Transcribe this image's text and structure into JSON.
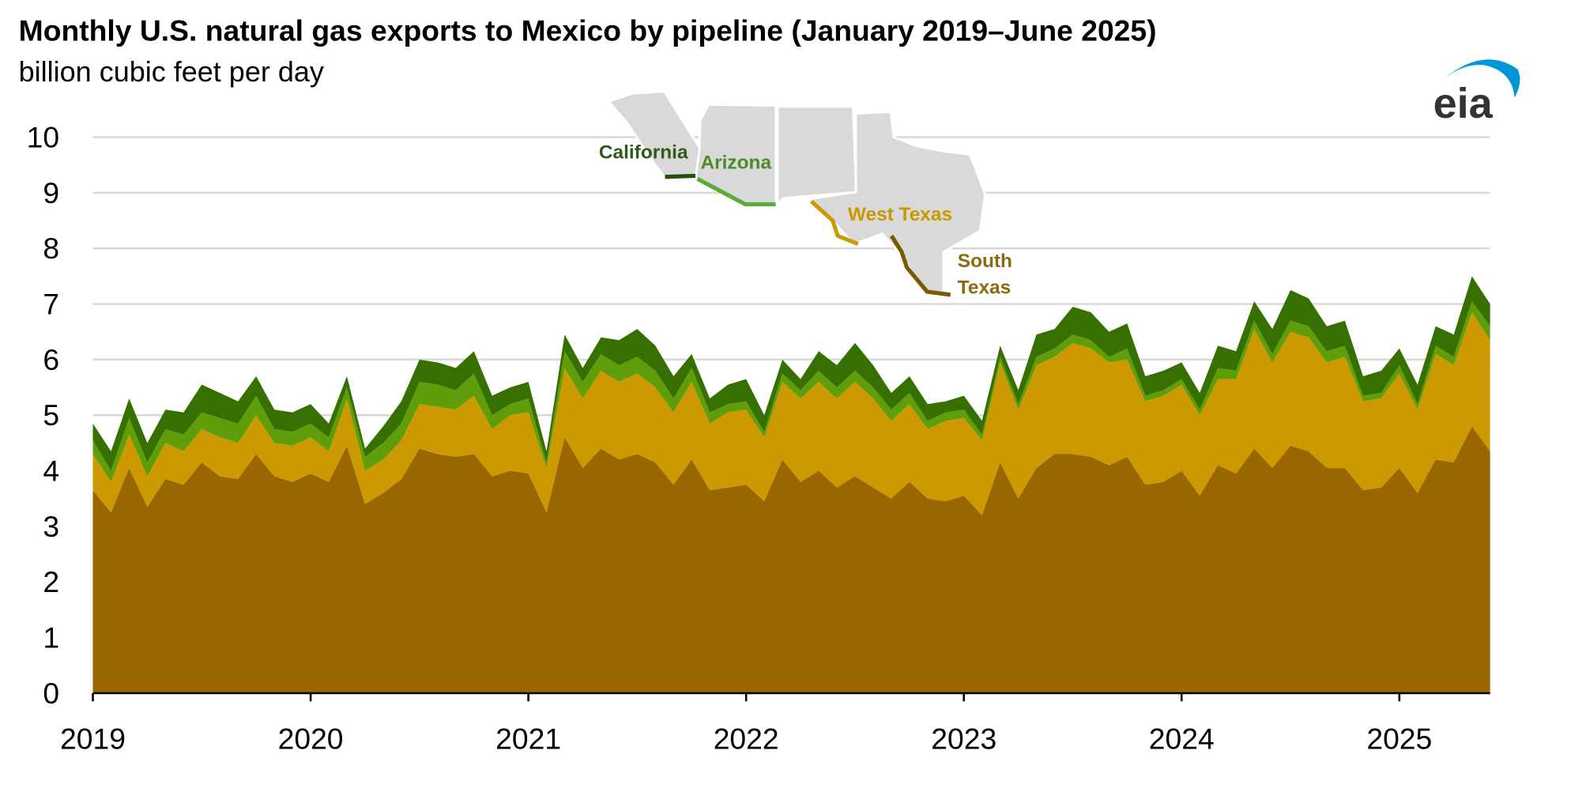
{
  "chart_data": {
    "type": "area",
    "stacked": true,
    "title": "Monthly U.S. natural gas exports to Mexico by pipeline (January 2019–June 2025)",
    "subtitle": "billion cubic feet per day",
    "logo": "eia",
    "x_start": "2019-01",
    "x_end": "2025-06",
    "x_frequency": "monthly",
    "xticks": [
      "2019",
      "2020",
      "2021",
      "2022",
      "2023",
      "2024",
      "2025"
    ],
    "yticks": [
      "0",
      "1",
      "2",
      "3",
      "4",
      "5",
      "6",
      "7",
      "8",
      "9",
      "10"
    ],
    "ylim": [
      0,
      10
    ],
    "grid": true,
    "legend": "map inset labels, top-center",
    "series": [
      {
        "name": "South Texas",
        "color": "#996600",
        "values": [
          3.65,
          3.25,
          4.05,
          3.35,
          3.85,
          3.75,
          4.15,
          3.9,
          3.85,
          4.3,
          3.9,
          3.8,
          3.95,
          3.8,
          4.45,
          3.4,
          3.6,
          3.85,
          4.4,
          4.3,
          4.25,
          4.3,
          3.9,
          4.0,
          3.95,
          3.25,
          4.6,
          4.05,
          4.4,
          4.2,
          4.3,
          4.15,
          3.75,
          4.2,
          3.65,
          3.7,
          3.75,
          3.45,
          4.2,
          3.8,
          4.0,
          3.7,
          3.9,
          3.7,
          3.5,
          3.8,
          3.5,
          3.45,
          3.55,
          3.2,
          4.15,
          3.5,
          4.05,
          4.3,
          4.3,
          4.25,
          4.1,
          4.25,
          3.75,
          3.8,
          4.0,
          3.55,
          4.1,
          3.95,
          4.4,
          4.05,
          4.45,
          4.35,
          4.05,
          4.05,
          3.65,
          3.7,
          4.05,
          3.6,
          4.2,
          4.15,
          4.8,
          4.35
        ]
      },
      {
        "name": "West Texas",
        "color": "#cc9900",
        "values": [
          0.65,
          0.55,
          0.6,
          0.55,
          0.65,
          0.6,
          0.6,
          0.7,
          0.65,
          0.7,
          0.6,
          0.65,
          0.65,
          0.55,
          0.85,
          0.6,
          0.6,
          0.7,
          0.8,
          0.85,
          0.85,
          1.05,
          0.85,
          1.0,
          1.1,
          0.8,
          1.25,
          1.25,
          1.4,
          1.4,
          1.45,
          1.35,
          1.3,
          1.4,
          1.2,
          1.35,
          1.35,
          1.15,
          1.4,
          1.5,
          1.6,
          1.6,
          1.7,
          1.6,
          1.4,
          1.4,
          1.25,
          1.45,
          1.4,
          1.35,
          1.8,
          1.6,
          1.85,
          1.75,
          2.0,
          1.95,
          1.85,
          1.75,
          1.5,
          1.55,
          1.55,
          1.45,
          1.55,
          1.7,
          2.15,
          1.9,
          2.05,
          2.05,
          1.9,
          2.0,
          1.6,
          1.6,
          1.7,
          1.5,
          1.9,
          1.75,
          2.05,
          2.0
        ]
      },
      {
        "name": "Arizona",
        "color": "#5f9e0a",
        "values": [
          0.25,
          0.2,
          0.3,
          0.25,
          0.25,
          0.3,
          0.3,
          0.35,
          0.35,
          0.35,
          0.25,
          0.25,
          0.25,
          0.25,
          0.2,
          0.25,
          0.3,
          0.3,
          0.4,
          0.4,
          0.35,
          0.4,
          0.25,
          0.2,
          0.25,
          0.1,
          0.3,
          0.3,
          0.3,
          0.3,
          0.3,
          0.3,
          0.25,
          0.25,
          0.2,
          0.15,
          0.15,
          0.1,
          0.15,
          0.15,
          0.2,
          0.2,
          0.2,
          0.2,
          0.2,
          0.2,
          0.15,
          0.15,
          0.15,
          0.1,
          0.1,
          0.1,
          0.15,
          0.15,
          0.15,
          0.15,
          0.1,
          0.2,
          0.1,
          0.1,
          0.1,
          0.1,
          0.2,
          0.15,
          0.15,
          0.15,
          0.2,
          0.2,
          0.2,
          0.2,
          0.1,
          0.1,
          0.15,
          0.1,
          0.15,
          0.15,
          0.2,
          0.25
        ]
      },
      {
        "name": "California",
        "color": "#357000",
        "values": [
          0.3,
          0.35,
          0.35,
          0.35,
          0.35,
          0.4,
          0.5,
          0.45,
          0.4,
          0.35,
          0.35,
          0.35,
          0.35,
          0.25,
          0.2,
          0.15,
          0.3,
          0.4,
          0.4,
          0.4,
          0.4,
          0.4,
          0.35,
          0.3,
          0.3,
          0.2,
          0.3,
          0.25,
          0.3,
          0.45,
          0.5,
          0.45,
          0.4,
          0.25,
          0.25,
          0.35,
          0.4,
          0.3,
          0.25,
          0.2,
          0.35,
          0.4,
          0.5,
          0.4,
          0.3,
          0.3,
          0.3,
          0.2,
          0.25,
          0.25,
          0.2,
          0.25,
          0.4,
          0.35,
          0.5,
          0.5,
          0.45,
          0.45,
          0.35,
          0.35,
          0.3,
          0.3,
          0.4,
          0.35,
          0.35,
          0.45,
          0.55,
          0.5,
          0.45,
          0.45,
          0.35,
          0.4,
          0.3,
          0.35,
          0.35,
          0.4,
          0.45,
          0.4
        ]
      }
    ],
    "map_colors": {
      "land": "#d9d9d9",
      "border": "#ffffff"
    }
  }
}
